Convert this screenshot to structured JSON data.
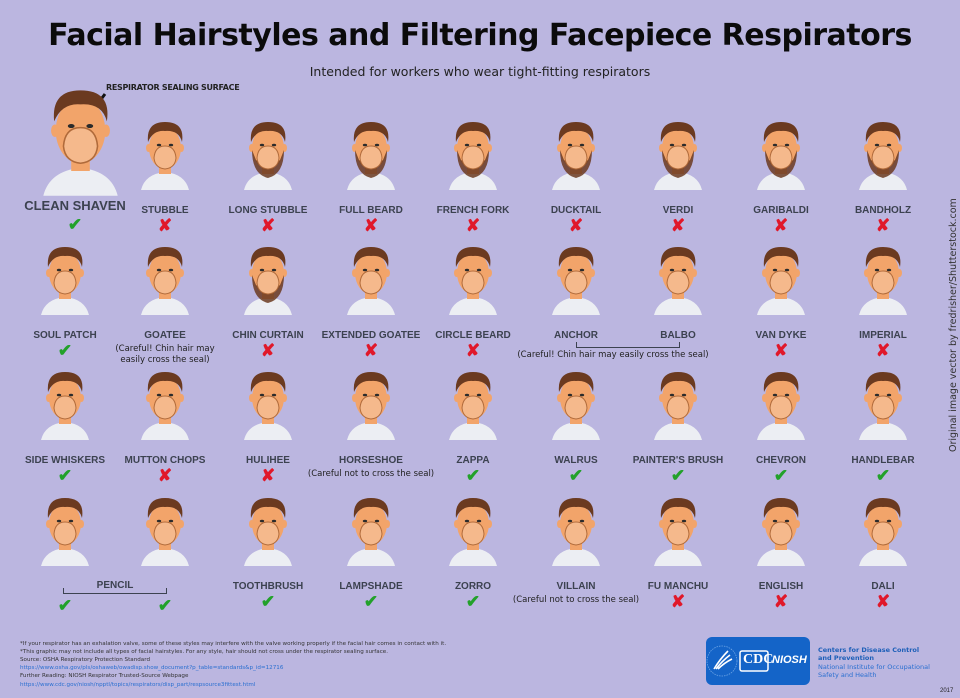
{
  "header": {
    "title": "Facial Hairstyles and Filtering Facepiece Respirators",
    "subtitle": "Intended for workers who wear tight-fitting respirators",
    "seal_label": "RESPIRATOR SEALING SURFACE"
  },
  "colors": {
    "background": "#bbb6e0",
    "ok": "#22a12a",
    "no": "#e0182a",
    "label": "#3c4250",
    "skin": "#f2a46a",
    "hair": "#6b3a20",
    "mask": "#f5b98c",
    "cdc_blue": "#1464c8"
  },
  "marks": {
    "ok": "✔",
    "no": "✘"
  },
  "hero": {
    "name": "CLEAN SHAVEN",
    "result": "ok"
  },
  "rows": [
    [
      {
        "name": "STUBBLE",
        "result": "no"
      },
      {
        "name": "LONG STUBBLE",
        "result": "no"
      },
      {
        "name": "FULL BEARD",
        "result": "no"
      },
      {
        "name": "FRENCH FORK",
        "result": "no"
      },
      {
        "name": "DUCKTAIL",
        "result": "no"
      },
      {
        "name": "VERDI",
        "result": "no"
      },
      {
        "name": "GARIBALDI",
        "result": "no"
      },
      {
        "name": "BANDHOLZ",
        "result": "no"
      }
    ],
    [
      {
        "name": "SOUL PATCH",
        "result": "ok"
      },
      {
        "name": "GOATEE",
        "result": "note",
        "note": "(Careful! Chin hair may\neasily cross the seal)"
      },
      {
        "name": "CHIN CURTAIN",
        "result": "no"
      },
      {
        "name": "EXTENDED GOATEE",
        "result": "no"
      },
      {
        "name": "CIRCLE BEARD",
        "result": "no"
      },
      {
        "name": "ANCHOR",
        "result": "group"
      },
      {
        "name": "BALBO",
        "result": "group"
      },
      {
        "name": "VAN DYKE",
        "result": "no"
      },
      {
        "name": "IMPERIAL",
        "result": "no"
      }
    ],
    [
      {
        "name": "SIDE WHISKERS",
        "result": "ok"
      },
      {
        "name": "MUTTON CHOPS",
        "result": "no"
      },
      {
        "name": "HULIHEE",
        "result": "no"
      },
      {
        "name": "HORSESHOE",
        "result": "note",
        "note": "(Careful not to cross the seal)"
      },
      {
        "name": "ZAPPA",
        "result": "ok"
      },
      {
        "name": "WALRUS",
        "result": "ok"
      },
      {
        "name": "PAINTER'S BRUSH",
        "result": "ok"
      },
      {
        "name": "CHEVRON",
        "result": "ok"
      },
      {
        "name": "HANDLEBAR",
        "result": "ok"
      }
    ],
    [
      {
        "name": "",
        "result": "ok"
      },
      {
        "name": "",
        "result": "ok"
      },
      {
        "name": "TOOTHBRUSH",
        "result": "ok"
      },
      {
        "name": "LAMPSHADE",
        "result": "ok"
      },
      {
        "name": "ZORRO",
        "result": "ok"
      },
      {
        "name": "VILLAIN",
        "result": "note",
        "note": "(Careful not to cross the seal)"
      },
      {
        "name": "FU MANCHU",
        "result": "no"
      },
      {
        "name": "ENGLISH",
        "result": "no"
      },
      {
        "name": "DALI",
        "result": "no"
      }
    ]
  ],
  "groups": {
    "anchor_balbo_note": "(Careful! Chin hair may easily cross the seal)",
    "pencil_label": "PENCIL"
  },
  "credit": "Original image vector by fredrisher/Shutterstock.com",
  "footer": {
    "note1": "*If your respirator has an exhalation valve, some of these styles may interfere with the valve working properly if the facial hair comes in contact with it.",
    "note2": "*This graphic may not include all types of facial hairstyles. For any style, hair should not cross under the respirator sealing surface.",
    "source_label": "Source: OSHA Respiratory Protection Standard",
    "source_url": "https://www.osha.gov/pls/oshaweb/owadisp.show_document?p_table=standards&p_id=12716",
    "further_label": "Further Reading: NIOSH Respirator Trusted-Source Webpage",
    "further_url": "https://www.cdc.gov/niosh/npptl/topics/respirators/disp_part/respsource3fittest.html"
  },
  "logo": {
    "cdc": "CDC",
    "niosh": "NIOSH",
    "org_line1": "Centers for Disease Control",
    "org_line2": "and Prevention",
    "inst_line1": "National Institute for Occupational",
    "inst_line2": "Safety and Health",
    "year": "2017"
  }
}
